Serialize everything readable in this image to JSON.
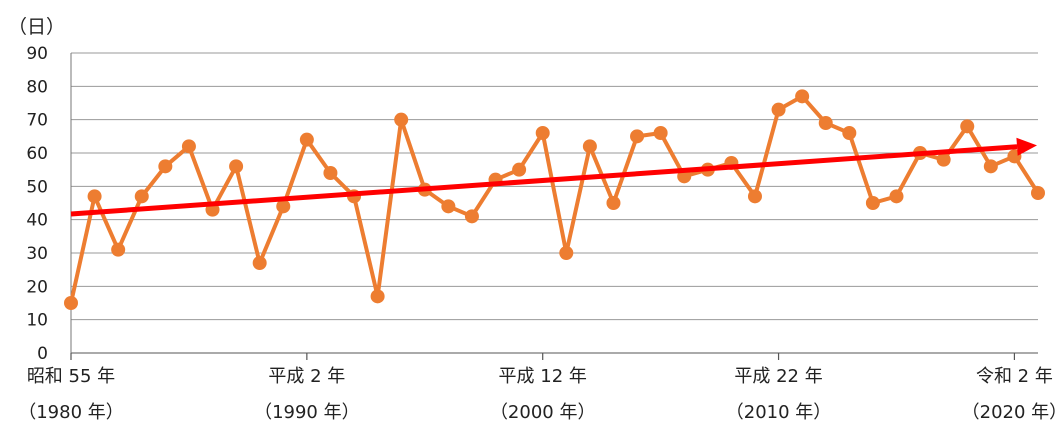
{
  "chart_data": {
    "type": "line",
    "y_unit_label": "（日）",
    "ylim": [
      0,
      90
    ],
    "y_ticks": [
      0,
      10,
      20,
      30,
      40,
      50,
      60,
      70,
      80,
      90
    ],
    "grid": true,
    "x": [
      1980,
      1981,
      1982,
      1983,
      1984,
      1985,
      1986,
      1987,
      1988,
      1989,
      1990,
      1991,
      1992,
      1993,
      1994,
      1995,
      1996,
      1997,
      1998,
      1999,
      2000,
      2001,
      2002,
      2003,
      2004,
      2005,
      2006,
      2007,
      2008,
      2009,
      2010,
      2011,
      2012,
      2013,
      2014,
      2015,
      2016,
      2017,
      2018,
      2019,
      2020,
      2021
    ],
    "series": [
      {
        "values": [
          15,
          47,
          31,
          47,
          56,
          62,
          43,
          56,
          27,
          44,
          64,
          54,
          47,
          17,
          70,
          49,
          44,
          41,
          52,
          55,
          66,
          30,
          62,
          45,
          65,
          66,
          53,
          55,
          57,
          47,
          73,
          77,
          69,
          66,
          45,
          47,
          60,
          58,
          68,
          56,
          59,
          48
        ],
        "color": "#ED7D31"
      }
    ],
    "trend": {
      "start": 41.7,
      "end": 62.3,
      "color": "#FF0000"
    },
    "x_tick_labels": [
      {
        "x": 1980,
        "line1": "昭和 55 年",
        "line2": "（1980 年）"
      },
      {
        "x": 1990,
        "line1": "平成 2 年",
        "line2": "（1990 年）"
      },
      {
        "x": 2000,
        "line1": "平成 12 年",
        "line2": "（2000 年）"
      },
      {
        "x": 2010,
        "line1": "平成 22 年",
        "line2": "（2010 年）"
      },
      {
        "x": 2020,
        "line1": "令和 2 年",
        "line2": "（2020 年）"
      }
    ]
  }
}
